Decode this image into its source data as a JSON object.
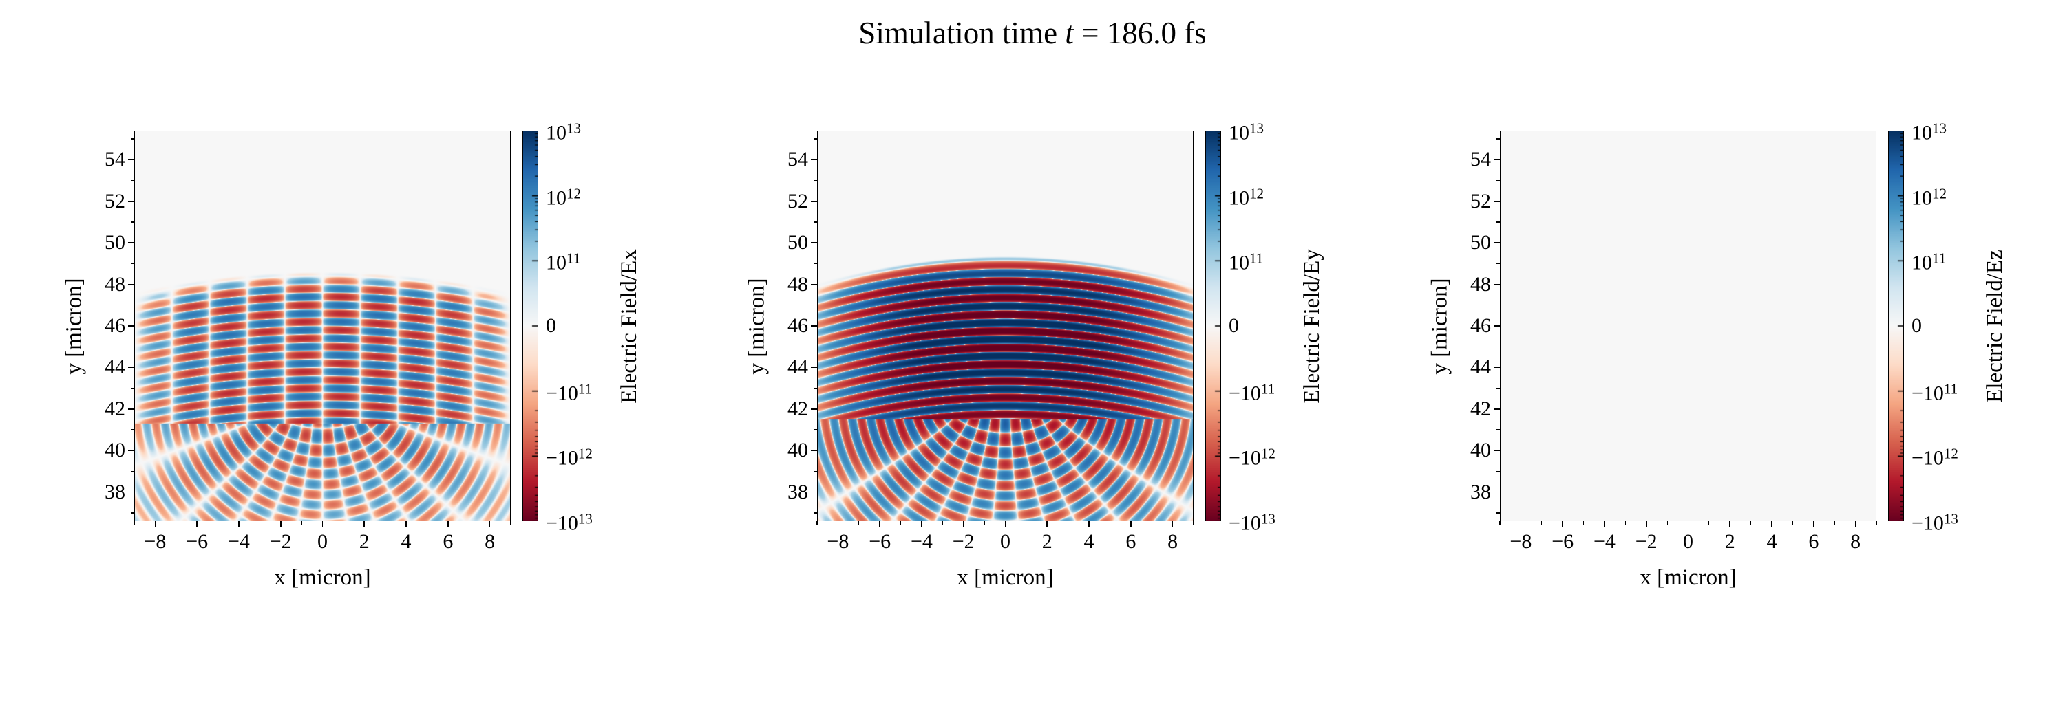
{
  "figure": {
    "title_parts": {
      "prefix": "Simulation time ",
      "variable": "t",
      "suffix": " = 186.0 fs"
    }
  },
  "chart_data": {
    "type": "heatmap",
    "title": "Simulation time t = 186.0 fs",
    "layout": "1x3 row of pcolormesh panels, each with its own symlog colorbar on the right",
    "colormap": "RdBu",
    "colormap_stops": [
      "#67001f",
      "#b2182b",
      "#d6604d",
      "#f4a582",
      "#fddbc7",
      "#f7f7f7",
      "#d1e5f0",
      "#92c5de",
      "#4393c3",
      "#2166ac",
      "#053061"
    ],
    "norm": {
      "type": "symlog",
      "linthresh": 100000000000.0,
      "vmin": -10000000000000.0,
      "vmax": 10000000000000.0,
      "units_per_half": 3
    },
    "panels": [
      {
        "field": "Ex",
        "xlabel": "x [micron]",
        "ylabel": "y [micron]",
        "colorbar_label": "Electric Field/Ex",
        "xlim": [
          -9,
          9
        ],
        "ylim": [
          36.6,
          55.4
        ],
        "xticks": [
          -8,
          -6,
          -4,
          -2,
          0,
          2,
          4,
          6,
          8
        ],
        "yticks": [
          38,
          40,
          42,
          44,
          46,
          48,
          50,
          52,
          54
        ],
        "xminorticks": [
          -9,
          -7,
          -5,
          -3,
          -1,
          1,
          3,
          5,
          7,
          9
        ],
        "yminorticks": [
          37,
          39,
          41,
          43,
          45,
          47,
          49,
          51,
          53,
          55
        ],
        "colorbar_ticks": [
          10000000000000.0,
          1000000000000.0,
          100000000000.0,
          0,
          -100000000000.0,
          -1000000000000.0,
          -10000000000000.0
        ],
        "colorbar_tick_labels": [
          "10^13",
          "10^12",
          "10^11",
          "0",
          "-10^11",
          "-10^12",
          "-10^13"
        ],
        "description": "Moderate-amplitude horizontal laser stripes below y~48.5 broken into vertical columns (antisymmetric Ex), diverging interference fan below the focus near y~41",
        "pattern": {
          "kind": "laser",
          "stripe_wavelength": 0.8,
          "front_y": 48.6,
          "front_curvature": 0.012,
          "focus_y": 41.3,
          "peak_amplitude": 1800000000000.0,
          "core_boost": 0,
          "column_period": 3.6,
          "antisymmetric": true,
          "fan_amplitude": 1100000000000.0
        }
      },
      {
        "field": "Ey",
        "xlabel": "x [micron]",
        "ylabel": "y [micron]",
        "colorbar_label": "Electric Field/Ey",
        "xlim": [
          -9,
          9
        ],
        "ylim": [
          36.6,
          55.4
        ],
        "xticks": [
          -8,
          -6,
          -4,
          -2,
          0,
          2,
          4,
          6,
          8
        ],
        "yticks": [
          38,
          40,
          42,
          44,
          46,
          48,
          50,
          52,
          54
        ],
        "xminorticks": [
          -9,
          -7,
          -5,
          -3,
          -1,
          1,
          3,
          5,
          7,
          9
        ],
        "yminorticks": [
          37,
          39,
          41,
          43,
          45,
          47,
          49,
          51,
          53,
          55
        ],
        "colorbar_ticks": [
          10000000000000.0,
          1000000000000.0,
          100000000000.0,
          0,
          -100000000000.0,
          -1000000000000.0,
          -10000000000000.0
        ],
        "colorbar_tick_labels": [
          "10^13",
          "10^12",
          "10^11",
          "0",
          "-10^11",
          "-10^12",
          "-10^13"
        ],
        "description": "Strong saturated horizontal stripes (near +/-1e13) below curved pulse front at y~49.4, interference fan radiating below the focus near y~41.5",
        "pattern": {
          "kind": "laser",
          "stripe_wavelength": 0.8,
          "front_y": 49.35,
          "front_curvature": 0.016,
          "focus_y": 41.5,
          "peak_amplitude": 4000000000000.0,
          "core_boost": 2.4,
          "column_period": 0,
          "antisymmetric": false,
          "fan_amplitude": 2600000000000.0
        }
      },
      {
        "field": "Ez",
        "xlabel": "x [micron]",
        "ylabel": "y [micron]",
        "colorbar_label": "Electric Field/Ez",
        "xlim": [
          -9,
          9
        ],
        "ylim": [
          36.6,
          55.4
        ],
        "xticks": [
          -8,
          -6,
          -4,
          -2,
          0,
          2,
          4,
          6,
          8
        ],
        "yticks": [
          38,
          40,
          42,
          44,
          46,
          48,
          50,
          52,
          54
        ],
        "xminorticks": [
          -9,
          -7,
          -5,
          -3,
          -1,
          1,
          3,
          5,
          7,
          9
        ],
        "yminorticks": [
          37,
          39,
          41,
          43,
          45,
          47,
          49,
          51,
          53,
          55
        ],
        "colorbar_ticks": [
          10000000000000.0,
          1000000000000.0,
          100000000000.0,
          0,
          -100000000000.0,
          -1000000000000.0,
          -10000000000000.0
        ],
        "colorbar_tick_labels": [
          "10^13",
          "10^12",
          "10^11",
          "0",
          "-10^11",
          "-10^12",
          "-10^13"
        ],
        "description": "Zero field everywhere; uniform near-white background",
        "pattern": {
          "kind": "zero"
        }
      }
    ]
  }
}
